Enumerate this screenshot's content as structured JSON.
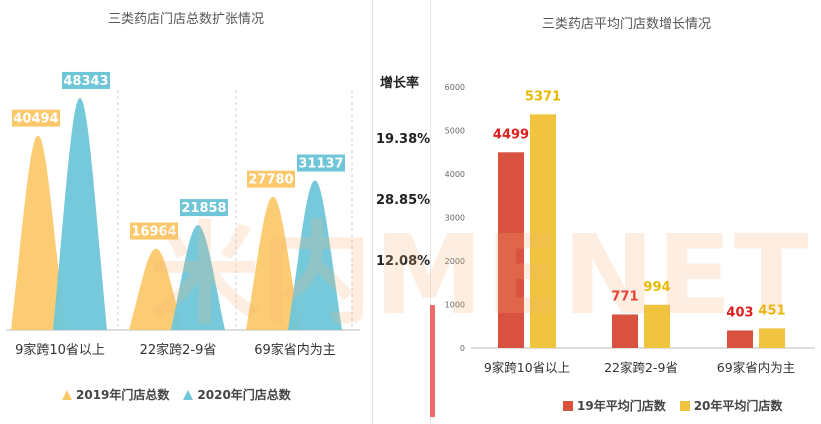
{
  "watermark": "米内MENET",
  "growth": {
    "heading": "增长率",
    "rates": [
      "19.38%",
      "28.85%",
      "12.08%"
    ]
  },
  "colors": {
    "series2019": "#fbc96b",
    "series2020": "#6ec6d8",
    "series19": "#d9513f",
    "series20": "#f0c43e",
    "label2019_text": "#ffffff",
    "label2020_text": "#ffffff",
    "bar_label19": "#e02020",
    "bar_label20": "#e8b800"
  },
  "chart_data": [
    {
      "type": "area",
      "title": "三类药店门店总数扩张情况",
      "categories": [
        "9家跨10省以上",
        "22家跨2-9省",
        "69家省内为主"
      ],
      "series": [
        {
          "name": "2019年门店总数",
          "values": [
            40494,
            16964,
            27780
          ]
        },
        {
          "name": "2020年门店总数",
          "values": [
            48343,
            21858,
            31137
          ]
        }
      ],
      "ylim": [
        0,
        50000
      ],
      "legend": "bottom"
    },
    {
      "type": "bar",
      "title": "三类药店平均门店数增长情况",
      "categories": [
        "9家跨10省以上",
        "22家跨2-9省",
        "69家省内为主"
      ],
      "series": [
        {
          "name": "19年平均门店数",
          "values": [
            4499,
            771,
            403
          ]
        },
        {
          "name": "20年平均门店数",
          "values": [
            5371,
            994,
            451
          ]
        }
      ],
      "yticks": [
        "0",
        "1000",
        "2000",
        "3000",
        "4000",
        "5000",
        "6000"
      ],
      "ylim": [
        0,
        6000
      ],
      "legend": "bottom"
    }
  ]
}
